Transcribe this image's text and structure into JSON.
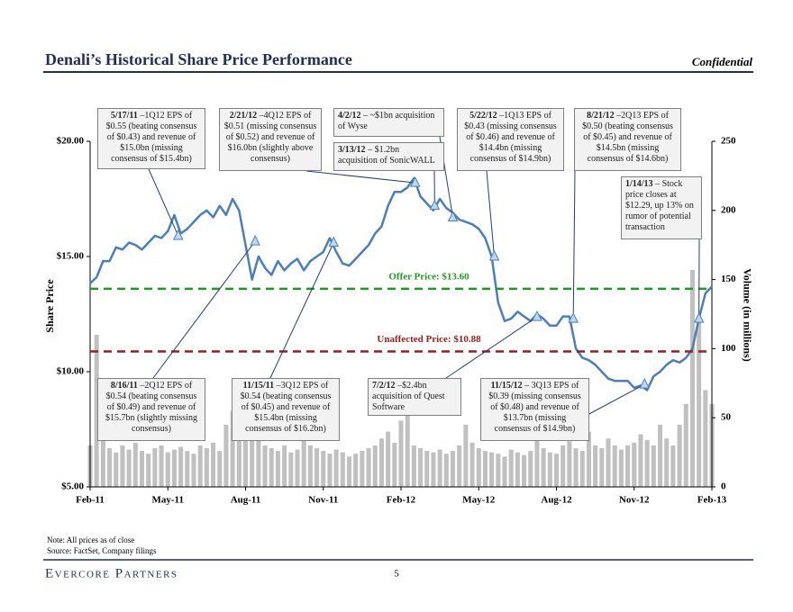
{
  "header": {
    "title": "Denali’s Historical Share Price Performance",
    "confidential": "Confidential"
  },
  "chart_data": {
    "type": "line",
    "y_label": "Share Price",
    "y2_label": "Volume (in millions)",
    "xlim": [
      0,
      24
    ],
    "xticks": [
      {
        "value": 0,
        "label": "Feb-11"
      },
      {
        "value": 3,
        "label": "May-11"
      },
      {
        "value": 6,
        "label": "Aug-11"
      },
      {
        "value": 9,
        "label": "Nov-11"
      },
      {
        "value": 12,
        "label": "Feb-12"
      },
      {
        "value": 15,
        "label": "May-12"
      },
      {
        "value": 18,
        "label": "Aug-12"
      },
      {
        "value": 21,
        "label": "Nov-12"
      },
      {
        "value": 24,
        "label": "Feb-13"
      }
    ],
    "ylim": [
      5,
      20
    ],
    "yticks": [
      {
        "value": 5,
        "label": "$5.00"
      },
      {
        "value": 10,
        "label": "$10.00"
      },
      {
        "value": 15,
        "label": "$15.00"
      },
      {
        "value": 20,
        "label": "$20.00"
      }
    ],
    "y2lim": [
      0,
      250
    ],
    "y2ticks": [
      0,
      50,
      100,
      150,
      200,
      250
    ],
    "x": [
      0,
      0.25,
      0.5,
      0.75,
      1,
      1.25,
      1.5,
      1.75,
      2,
      2.25,
      2.5,
      2.75,
      3,
      3.25,
      3.5,
      3.75,
      4,
      4.25,
      4.5,
      4.75,
      5,
      5.25,
      5.5,
      5.75,
      6,
      6.25,
      6.5,
      6.75,
      7,
      7.25,
      7.5,
      7.75,
      8,
      8.25,
      8.5,
      8.75,
      9,
      9.25,
      9.5,
      9.75,
      10,
      10.25,
      10.5,
      10.75,
      11,
      11.25,
      11.5,
      11.75,
      12,
      12.25,
      12.5,
      12.75,
      13,
      13.25,
      13.5,
      13.75,
      14,
      14.25,
      14.5,
      14.75,
      15,
      15.25,
      15.5,
      15.75,
      16,
      16.25,
      16.5,
      16.75,
      17,
      17.25,
      17.5,
      17.75,
      18,
      18.25,
      18.5,
      18.75,
      19,
      19.25,
      19.5,
      19.75,
      20,
      20.25,
      20.5,
      20.75,
      21,
      21.25,
      21.5,
      21.75,
      22,
      22.25,
      22.5,
      22.75,
      23,
      23.25,
      23.5,
      23.75,
      24
    ],
    "series": [
      {
        "type": "bar",
        "axis": "y2",
        "color": "#c0c0c0",
        "values": [
          30,
          110,
          35,
          28,
          25,
          30,
          27,
          32,
          26,
          24,
          28,
          30,
          25,
          27,
          29,
          26,
          24,
          30,
          28,
          32,
          26,
          45,
          55,
          40,
          50,
          38,
          35,
          30,
          28,
          26,
          30,
          25,
          27,
          35,
          30,
          28,
          26,
          24,
          27,
          25,
          22,
          24,
          26,
          28,
          30,
          35,
          40,
          32,
          48,
          55,
          30,
          28,
          26,
          25,
          27,
          24,
          26,
          30,
          45,
          32,
          28,
          26,
          25,
          24,
          22,
          27,
          25,
          23,
          26,
          35,
          28,
          25,
          24,
          30,
          33,
          28,
          26,
          40,
          30,
          28,
          35,
          30,
          27,
          30,
          32,
          38,
          34,
          30,
          45,
          35,
          30,
          45,
          60,
          157,
          120,
          70,
          60
        ]
      },
      {
        "type": "line",
        "color": "#4a7ebf",
        "values": [
          13.83,
          14.1,
          14.8,
          14.8,
          15.4,
          15.3,
          15.6,
          15.5,
          15.3,
          15.6,
          15.9,
          15.8,
          16.1,
          16.8,
          16.0,
          16.2,
          16.5,
          16.8,
          17.0,
          16.7,
          17.2,
          16.8,
          17.5,
          17.0,
          15.5,
          14.0,
          15.0,
          14.5,
          14.2,
          14.8,
          14.4,
          14.7,
          14.9,
          14.4,
          14.8,
          15.0,
          15.2,
          15.8,
          15.2,
          14.7,
          14.6,
          14.9,
          15.2,
          15.5,
          16.0,
          16.3,
          17.2,
          17.8,
          17.8,
          18.0,
          18.4,
          17.6,
          17.3,
          17.0,
          17.5,
          17.1,
          16.9,
          16.6,
          16.5,
          16.4,
          16.2,
          15.8,
          15.0,
          13.0,
          12.2,
          12.3,
          12.6,
          12.4,
          12.2,
          12.5,
          12.3,
          12.0,
          12.0,
          12.4,
          12.4,
          11.0,
          10.6,
          10.5,
          10.3,
          10.0,
          9.7,
          9.6,
          9.6,
          9.6,
          9.3,
          9.4,
          9.2,
          9.8,
          10.0,
          10.3,
          10.5,
          10.4,
          10.6,
          11.0,
          12.3,
          13.4,
          13.7
        ]
      }
    ],
    "reference_lines": [
      {
        "label": "Offer Price: $13.60",
        "value": 13.6,
        "color": "#1e9a1e"
      },
      {
        "label": "Unaffected Price: $10.88",
        "value": 10.88,
        "color": "#9b1c1c"
      }
    ],
    "events": [
      {
        "date": "5/17/11",
        "text": "–1Q12 EPS of $0.55 (beating consensus of $0.43) and revenue of $15.0bn (missing consensus of $15.4bn)",
        "x": 3.4,
        "y": 15.9
      },
      {
        "date": "2/21/12",
        "text": "–4Q12 EPS of $0.51 (missing consensus of $0.52) and revenue of $16.0bn (slightly above consensus)",
        "x": 12.55,
        "y": 18.2
      },
      {
        "date": "4/2/12",
        "text": "– ~$1bn acquisition of Wyse",
        "x": 14.0,
        "y": 16.7
      },
      {
        "date": "3/13/12",
        "text": "– $1.2bn acquisition of SonicWALL",
        "x": 13.3,
        "y": 17.2
      },
      {
        "date": "5/22/12",
        "text": "–1Q13 EPS of $0.43 (missing consensus of $0.46) and revenue of $14.4bn (missing consensus of $14.9bn)",
        "x": 15.6,
        "y": 15.0
      },
      {
        "date": "8/21/12",
        "text": "–2Q13 EPS of $0.50 (beating consensus of $0.45) and revenue of $14.5bn (missing consensus of $14.6bn)",
        "x": 18.65,
        "y": 12.3
      },
      {
        "date": "1/14/13",
        "text": "– Stock price closes at $12.29, up 13% on rumor of potential transaction",
        "x": 23.5,
        "y": 12.3
      },
      {
        "date": "8/16/11",
        "text": "–2Q12 EPS of $0.54 (beating consensus of $0.49) and revenue of $15.7bn (slightly missing consensus)",
        "x": 6.37,
        "y": 15.66
      },
      {
        "date": "11/15/11",
        "text": "–3Q12 EPS of $0.54 (beating consensus of $0.45) and revenue of $15.4bn (missing consensus of $16.2bn)",
        "x": 9.4,
        "y": 15.6
      },
      {
        "date": "7/2/12",
        "text": "–$2.4bn acquisition of Quest Software",
        "x": 17.25,
        "y": 12.38
      },
      {
        "date": "11/15/12",
        "text": "– 3Q13 EPS of $0.39 (missing consensus of $0.48) and revenue of $13.7bn (missing consensus of $14.9bn)",
        "x": 21.4,
        "y": 9.45
      }
    ]
  },
  "footer": {
    "note": "Note: All prices as of close",
    "source": "Source: FactSet, Company filings",
    "logo": "Evercore Partners",
    "page": "5"
  }
}
